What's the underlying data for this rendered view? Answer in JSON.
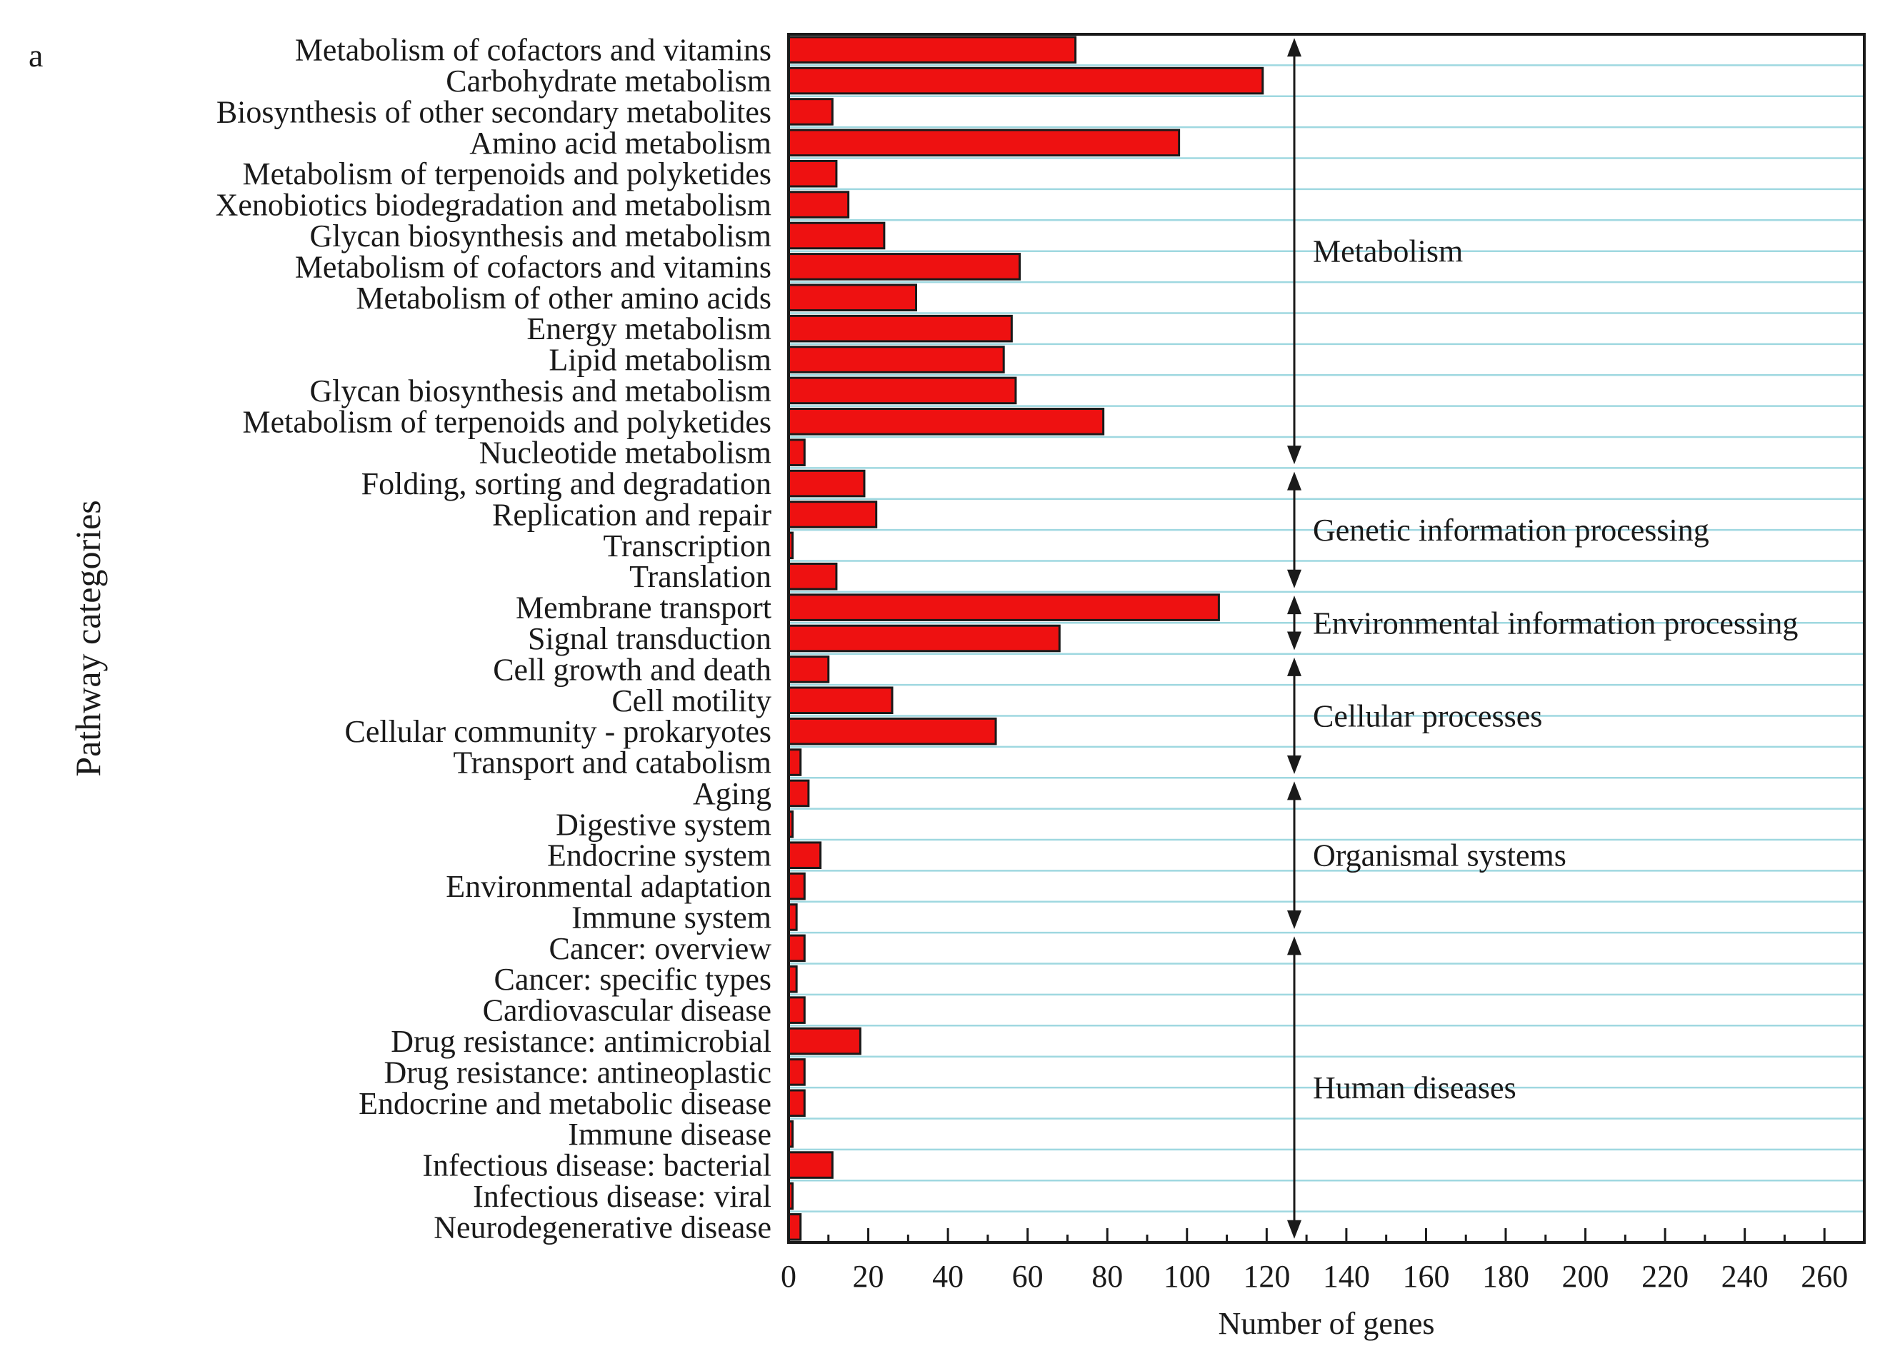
{
  "panel_letter": "a",
  "chart_data": {
    "type": "bar",
    "orientation": "horizontal",
    "xlabel": "Number of genes",
    "ylabel": "Pathway categories",
    "xlim": [
      0,
      270
    ],
    "xticks": [
      0,
      20,
      40,
      60,
      80,
      100,
      120,
      140,
      160,
      180,
      200,
      220,
      240,
      260
    ],
    "grid": true,
    "colors": {
      "bar": "#ee1111",
      "bar_edge": "#1a1a1a",
      "grid": "#9fd8e0",
      "arrow": "#1a1a1a"
    },
    "categories": [
      "Metabolism of cofactors and vitamins",
      "Carbohydrate metabolism",
      "Biosynthesis of other secondary metabolites",
      "Amino acid metabolism",
      "Metabolism of terpenoids and polyketides",
      "Xenobiotics biodegradation and metabolism",
      "Glycan biosynthesis and metabolism",
      "Metabolism of cofactors and vitamins",
      "Metabolism of other amino acids",
      "Energy metabolism",
      "Lipid metabolism",
      "Glycan biosynthesis and metabolism",
      "Metabolism of terpenoids and polyketides",
      "Nucleotide metabolism",
      "Folding, sorting and degradation",
      "Replication and repair",
      "Transcription",
      "Translation",
      "Membrane transport",
      "Signal transduction",
      "Cell growth and death",
      "Cell motility",
      "Cellular community - prokaryotes",
      "Transport and catabolism",
      "Aging",
      "Digestive system",
      "Endocrine system",
      "Environmental adaptation",
      "Immune system",
      "Cancer: overview",
      "Cancer: specific types",
      "Cardiovascular disease",
      "Drug resistance: antimicrobial",
      "Drug resistance: antineoplastic",
      "Endocrine and metabolic disease",
      "Immune disease",
      "Infectious disease: bacterial",
      "Infectious disease: viral",
      "Neurodegenerative disease"
    ],
    "values": [
      72,
      119,
      11,
      98,
      12,
      15,
      24,
      58,
      32,
      56,
      54,
      57,
      79,
      4,
      19,
      22,
      1,
      12,
      108,
      68,
      10,
      26,
      52,
      3,
      5,
      1,
      8,
      4,
      2,
      4,
      2,
      4,
      18,
      4,
      4,
      1,
      11,
      1,
      3
    ],
    "groups": [
      {
        "name": "Metabolism",
        "start": 0,
        "end": 13
      },
      {
        "name": "Genetic information processing",
        "start": 14,
        "end": 17
      },
      {
        "name": "Environmental information processing",
        "start": 18,
        "end": 19
      },
      {
        "name": "Cellular processes",
        "start": 20,
        "end": 23
      },
      {
        "name": "Organismal systems",
        "start": 24,
        "end": 28
      },
      {
        "name": "Human diseases",
        "start": 29,
        "end": 38
      }
    ]
  }
}
